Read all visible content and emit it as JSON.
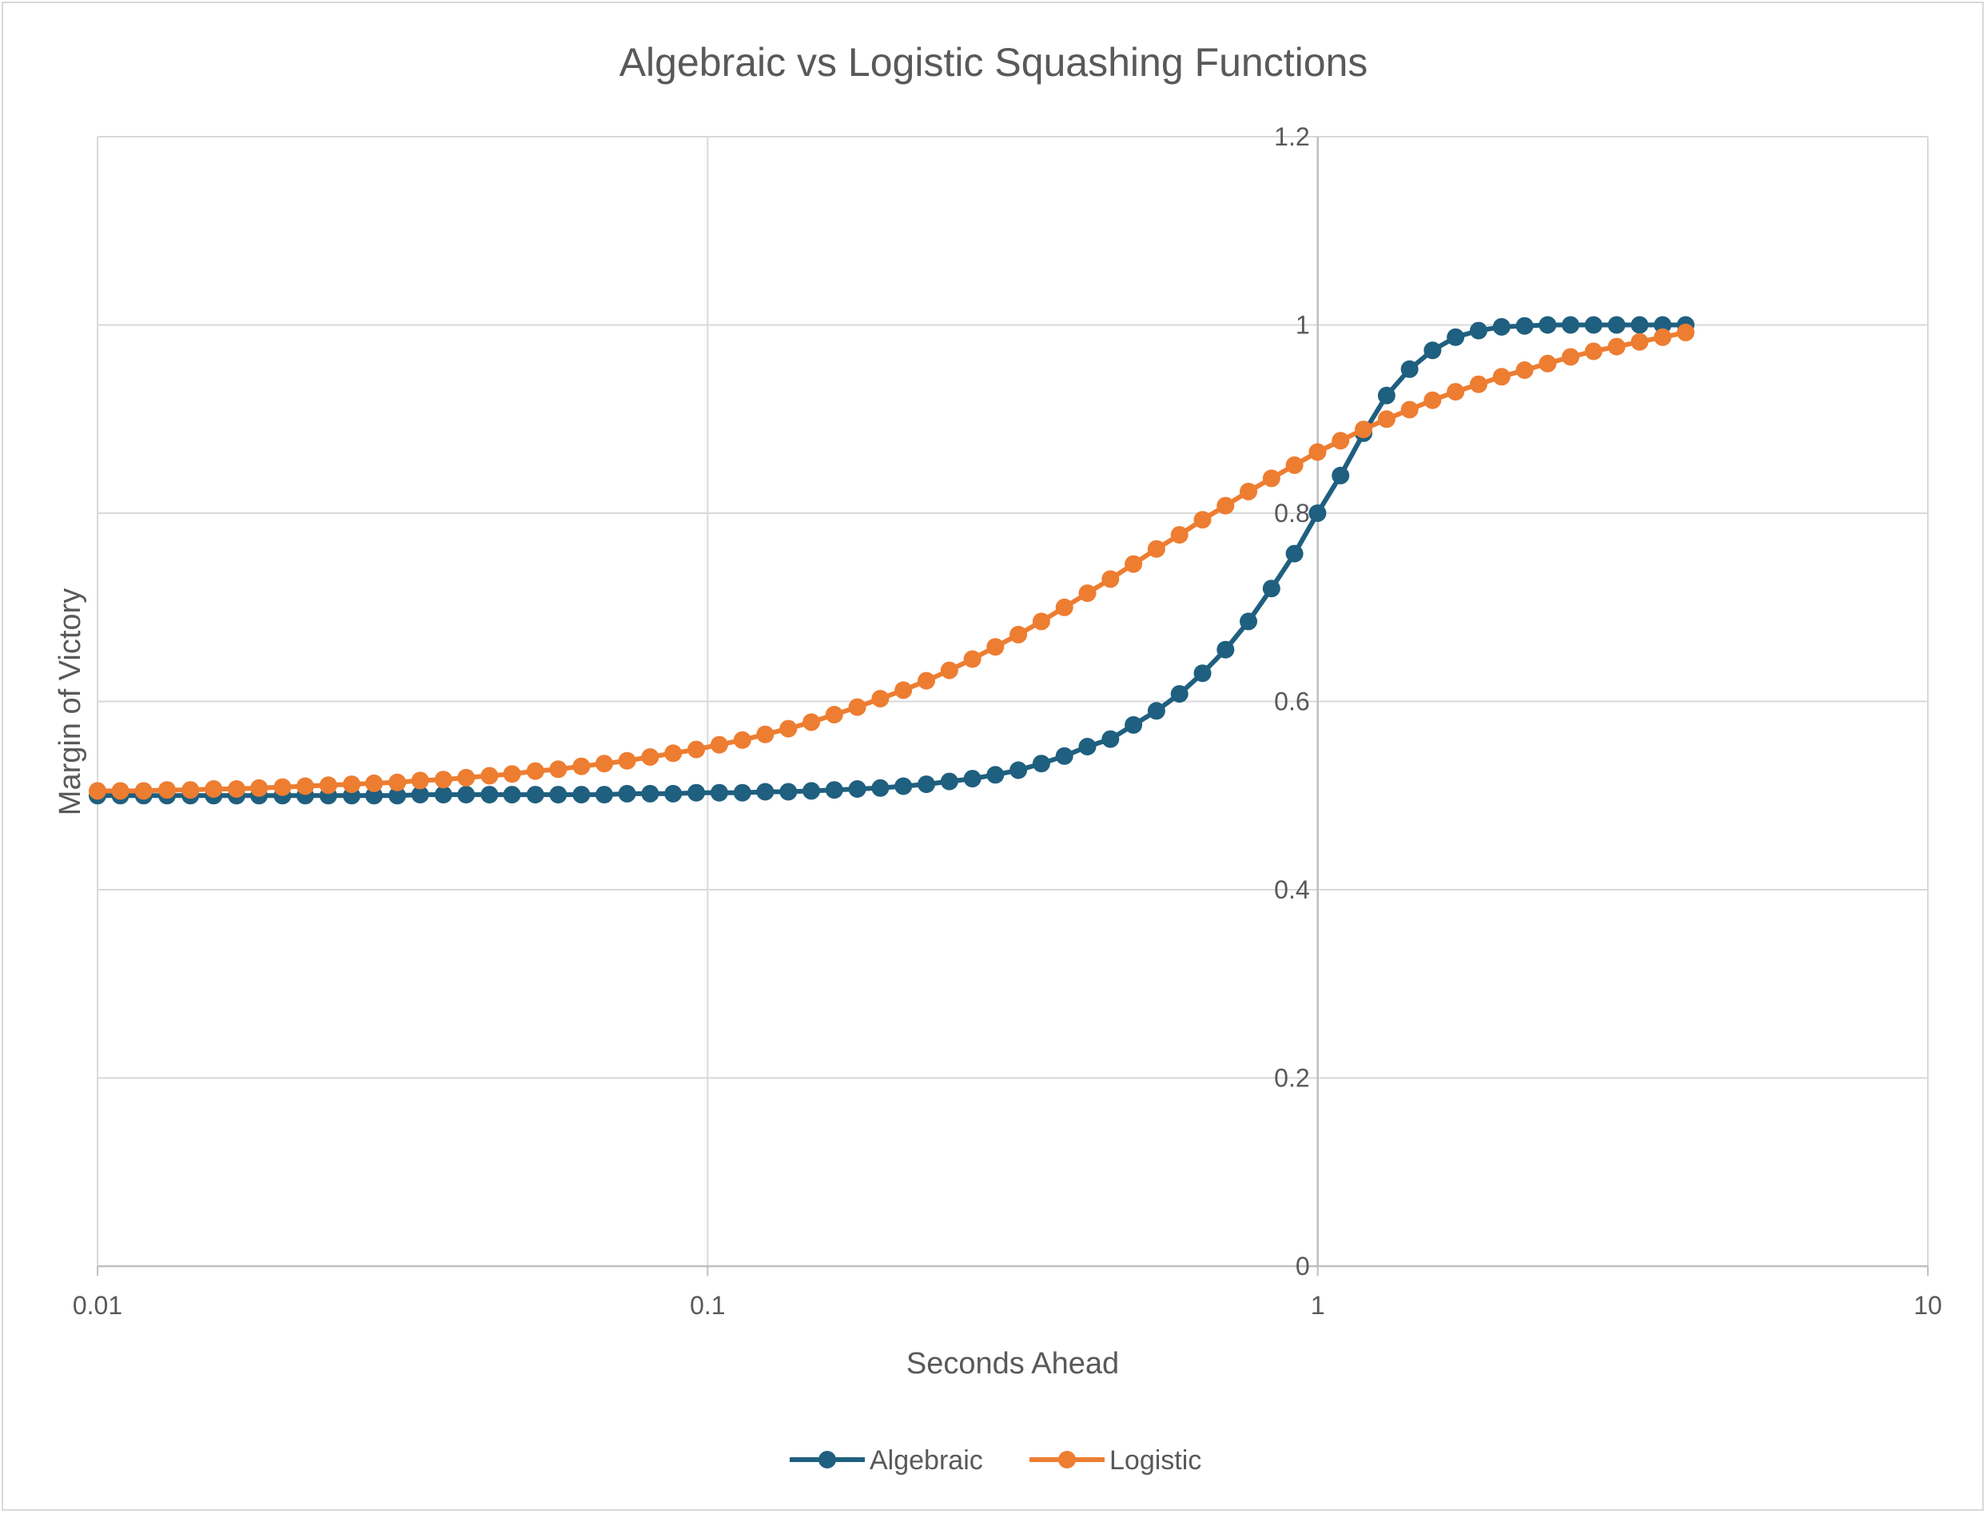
{
  "chart_data": {
    "type": "line",
    "title": "Algebraic vs Logistic Squashing Functions",
    "xlabel": "Seconds Ahead",
    "ylabel": "Margin of Victory",
    "x_scale": "log",
    "xlim": [
      0.01,
      10
    ],
    "ylim": [
      0,
      1.2
    ],
    "x_ticks": [
      "0.01",
      "0.1",
      "1",
      "10"
    ],
    "y_ticks": [
      "0",
      "0.2",
      "0.4",
      "0.6",
      "0.8",
      "1",
      "1.2"
    ],
    "grid": true,
    "legend_position": "bottom",
    "series": [
      {
        "name": "Algebraic",
        "color": "#1f5f7f",
        "points": [
          [
            0.01,
            0.5
          ],
          [
            0.0109,
            0.5
          ],
          [
            0.0119,
            0.5
          ],
          [
            0.013,
            0.5
          ],
          [
            0.0142,
            0.5
          ],
          [
            0.0155,
            0.5
          ],
          [
            0.0169,
            0.5
          ],
          [
            0.0184,
            0.5
          ],
          [
            0.0201,
            0.5
          ],
          [
            0.0219,
            0.5
          ],
          [
            0.0239,
            0.5
          ],
          [
            0.0261,
            0.5
          ],
          [
            0.0284,
            0.5
          ],
          [
            0.031,
            0.5
          ],
          [
            0.0338,
            0.501
          ],
          [
            0.0369,
            0.501
          ],
          [
            0.0402,
            0.501
          ],
          [
            0.0439,
            0.501
          ],
          [
            0.0478,
            0.501
          ],
          [
            0.0522,
            0.501
          ],
          [
            0.0569,
            0.501
          ],
          [
            0.0621,
            0.501
          ],
          [
            0.0677,
            0.501
          ],
          [
            0.0738,
            0.502
          ],
          [
            0.0805,
            0.502
          ],
          [
            0.0878,
            0.502
          ],
          [
            0.0958,
            0.503
          ],
          [
            0.1045,
            0.503
          ],
          [
            0.114,
            0.503
          ],
          [
            0.1243,
            0.504
          ],
          [
            0.1356,
            0.504
          ],
          [
            0.1479,
            0.505
          ],
          [
            0.1613,
            0.506
          ],
          [
            0.1759,
            0.507
          ],
          [
            0.1919,
            0.508
          ],
          [
            0.2093,
            0.51
          ],
          [
            0.2283,
            0.512
          ],
          [
            0.249,
            0.515
          ],
          [
            0.2716,
            0.518
          ],
          [
            0.2962,
            0.522
          ],
          [
            0.3231,
            0.527
          ],
          [
            0.3524,
            0.534
          ],
          [
            0.3844,
            0.542
          ],
          [
            0.4193,
            0.552
          ],
          [
            0.4573,
            0.56
          ],
          [
            0.4988,
            0.575
          ],
          [
            0.5441,
            0.59
          ],
          [
            0.5934,
            0.608
          ],
          [
            0.6473,
            0.63
          ],
          [
            0.706,
            0.655
          ],
          [
            0.77,
            0.685
          ],
          [
            0.8399,
            0.72
          ],
          [
            0.9161,
            0.757
          ],
          [
            0.9992,
            0.8
          ],
          [
            1.0898,
            0.84
          ],
          [
            1.1887,
            0.885
          ],
          [
            1.2966,
            0.925
          ],
          [
            1.4142,
            0.953
          ],
          [
            1.5425,
            0.973
          ],
          [
            1.6824,
            0.987
          ],
          [
            1.835,
            0.994
          ],
          [
            2.0015,
            0.998
          ],
          [
            2.183,
            0.999
          ],
          [
            2.381,
            1.0
          ],
          [
            2.597,
            1.0
          ],
          [
            2.8326,
            1.0
          ],
          [
            3.0896,
            1.0
          ],
          [
            3.3698,
            1.0
          ],
          [
            3.6755,
            1.0
          ],
          [
            4.009,
            1.0
          ]
        ]
      },
      {
        "name": "Logistic",
        "color": "#ed7d31",
        "points": [
          [
            0.01,
            0.505
          ],
          [
            0.0109,
            0.505
          ],
          [
            0.0119,
            0.505
          ],
          [
            0.013,
            0.506
          ],
          [
            0.0142,
            0.506
          ],
          [
            0.0155,
            0.507
          ],
          [
            0.0169,
            0.507
          ],
          [
            0.0184,
            0.508
          ],
          [
            0.0201,
            0.509
          ],
          [
            0.0219,
            0.51
          ],
          [
            0.0239,
            0.511
          ],
          [
            0.0261,
            0.512
          ],
          [
            0.0284,
            0.513
          ],
          [
            0.031,
            0.514
          ],
          [
            0.0338,
            0.516
          ],
          [
            0.0369,
            0.517
          ],
          [
            0.0402,
            0.519
          ],
          [
            0.0439,
            0.521
          ],
          [
            0.0478,
            0.523
          ],
          [
            0.0522,
            0.526
          ],
          [
            0.0569,
            0.528
          ],
          [
            0.0621,
            0.531
          ],
          [
            0.0677,
            0.534
          ],
          [
            0.0738,
            0.537
          ],
          [
            0.0805,
            0.541
          ],
          [
            0.0878,
            0.545
          ],
          [
            0.0958,
            0.549
          ],
          [
            0.1045,
            0.554
          ],
          [
            0.114,
            0.559
          ],
          [
            0.1243,
            0.565
          ],
          [
            0.1356,
            0.571
          ],
          [
            0.1479,
            0.578
          ],
          [
            0.1613,
            0.586
          ],
          [
            0.1759,
            0.594
          ],
          [
            0.1919,
            0.603
          ],
          [
            0.2093,
            0.612
          ],
          [
            0.2283,
            0.622
          ],
          [
            0.249,
            0.633
          ],
          [
            0.2716,
            0.645
          ],
          [
            0.2962,
            0.658
          ],
          [
            0.3231,
            0.671
          ],
          [
            0.3524,
            0.685
          ],
          [
            0.3844,
            0.7
          ],
          [
            0.4193,
            0.715
          ],
          [
            0.4573,
            0.73
          ],
          [
            0.4988,
            0.746
          ],
          [
            0.5441,
            0.762
          ],
          [
            0.5934,
            0.777
          ],
          [
            0.6473,
            0.793
          ],
          [
            0.706,
            0.808
          ],
          [
            0.77,
            0.823
          ],
          [
            0.8399,
            0.837
          ],
          [
            0.9161,
            0.851
          ],
          [
            0.9992,
            0.865
          ],
          [
            1.0898,
            0.877
          ],
          [
            1.1887,
            0.889
          ],
          [
            1.2966,
            0.9
          ],
          [
            1.4142,
            0.91
          ],
          [
            1.5425,
            0.92
          ],
          [
            1.6824,
            0.929
          ],
          [
            1.835,
            0.937
          ],
          [
            2.0015,
            0.945
          ],
          [
            2.183,
            0.952
          ],
          [
            2.381,
            0.959
          ],
          [
            2.597,
            0.966
          ],
          [
            2.8326,
            0.972
          ],
          [
            3.0896,
            0.977
          ],
          [
            3.3698,
            0.982
          ],
          [
            3.6755,
            0.987
          ],
          [
            4.009,
            0.992
          ]
        ]
      }
    ]
  }
}
